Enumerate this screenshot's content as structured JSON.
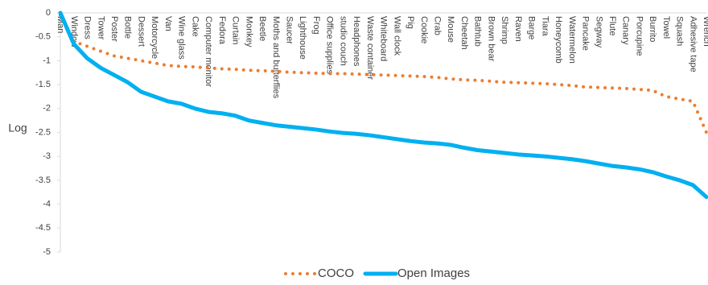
{
  "chart_data": {
    "type": "line",
    "y_label": "Log",
    "categories": [
      "Man",
      "Window",
      "Dress",
      "Tower",
      "Poster",
      "Bottle",
      "Dessert",
      "Motorcycle",
      "Van",
      "Wine glass",
      "Cake",
      "Computer monitor",
      "Fedora",
      "Curtain",
      "Monkey",
      "Beetle",
      "Moths and butterflies",
      "Saucer",
      "Lighthouse",
      "Frog",
      "Office supplies",
      "studio couch",
      "Headphones",
      "Waste container",
      "Whiteboard",
      "Wall clock",
      "Pig",
      "Cookie",
      "Crab",
      "Mouse",
      "Cheetah",
      "Bathtub",
      "Brown bear",
      "Shrimp",
      "Raven",
      "Barge",
      "Tiara",
      "Honeycomb",
      "Watermelon",
      "Pancake",
      "Segway",
      "Flute",
      "Canary",
      "Porcupine",
      "Burrito",
      "Towel",
      "Squash",
      "Adhesive tape",
      "Wrench"
    ],
    "series": [
      {
        "name": "COCO",
        "color": "#ed7d31",
        "style": "dotted",
        "values": [
          -0.05,
          -0.6,
          -0.7,
          -0.8,
          -0.9,
          -0.95,
          -1.0,
          -1.05,
          -1.1,
          -1.12,
          -1.13,
          -1.15,
          -1.17,
          -1.18,
          -1.2,
          -1.21,
          -1.22,
          -1.24,
          -1.25,
          -1.26,
          -1.27,
          -1.27,
          -1.28,
          -1.29,
          -1.3,
          -1.31,
          -1.32,
          -1.33,
          -1.35,
          -1.38,
          -1.4,
          -1.41,
          -1.43,
          -1.45,
          -1.46,
          -1.47,
          -1.48,
          -1.5,
          -1.52,
          -1.55,
          -1.56,
          -1.57,
          -1.58,
          -1.6,
          -1.62,
          -1.75,
          -1.8,
          -1.85,
          -2.5
        ]
      },
      {
        "name": "Open Images",
        "color": "#00b0f0",
        "style": "solid",
        "values": [
          0,
          -0.65,
          -0.95,
          -1.15,
          -1.3,
          -1.45,
          -1.65,
          -1.75,
          -1.85,
          -1.9,
          -2.0,
          -2.07,
          -2.1,
          -2.15,
          -2.25,
          -2.3,
          -2.35,
          -2.38,
          -2.41,
          -2.44,
          -2.48,
          -2.51,
          -2.53,
          -2.56,
          -2.6,
          -2.64,
          -2.68,
          -2.71,
          -2.73,
          -2.76,
          -2.82,
          -2.87,
          -2.9,
          -2.93,
          -2.96,
          -2.98,
          -3.0,
          -3.03,
          -3.06,
          -3.1,
          -3.15,
          -3.2,
          -3.23,
          -3.27,
          -3.33,
          -3.42,
          -3.5,
          -3.6,
          -3.85
        ]
      }
    ],
    "ylim": [
      -5,
      0
    ],
    "yticks": [
      0,
      -0.5,
      -1,
      -1.5,
      -2,
      -2.5,
      -3,
      -3.5,
      -4,
      -4.5,
      -5
    ],
    "legend": "bottom"
  }
}
